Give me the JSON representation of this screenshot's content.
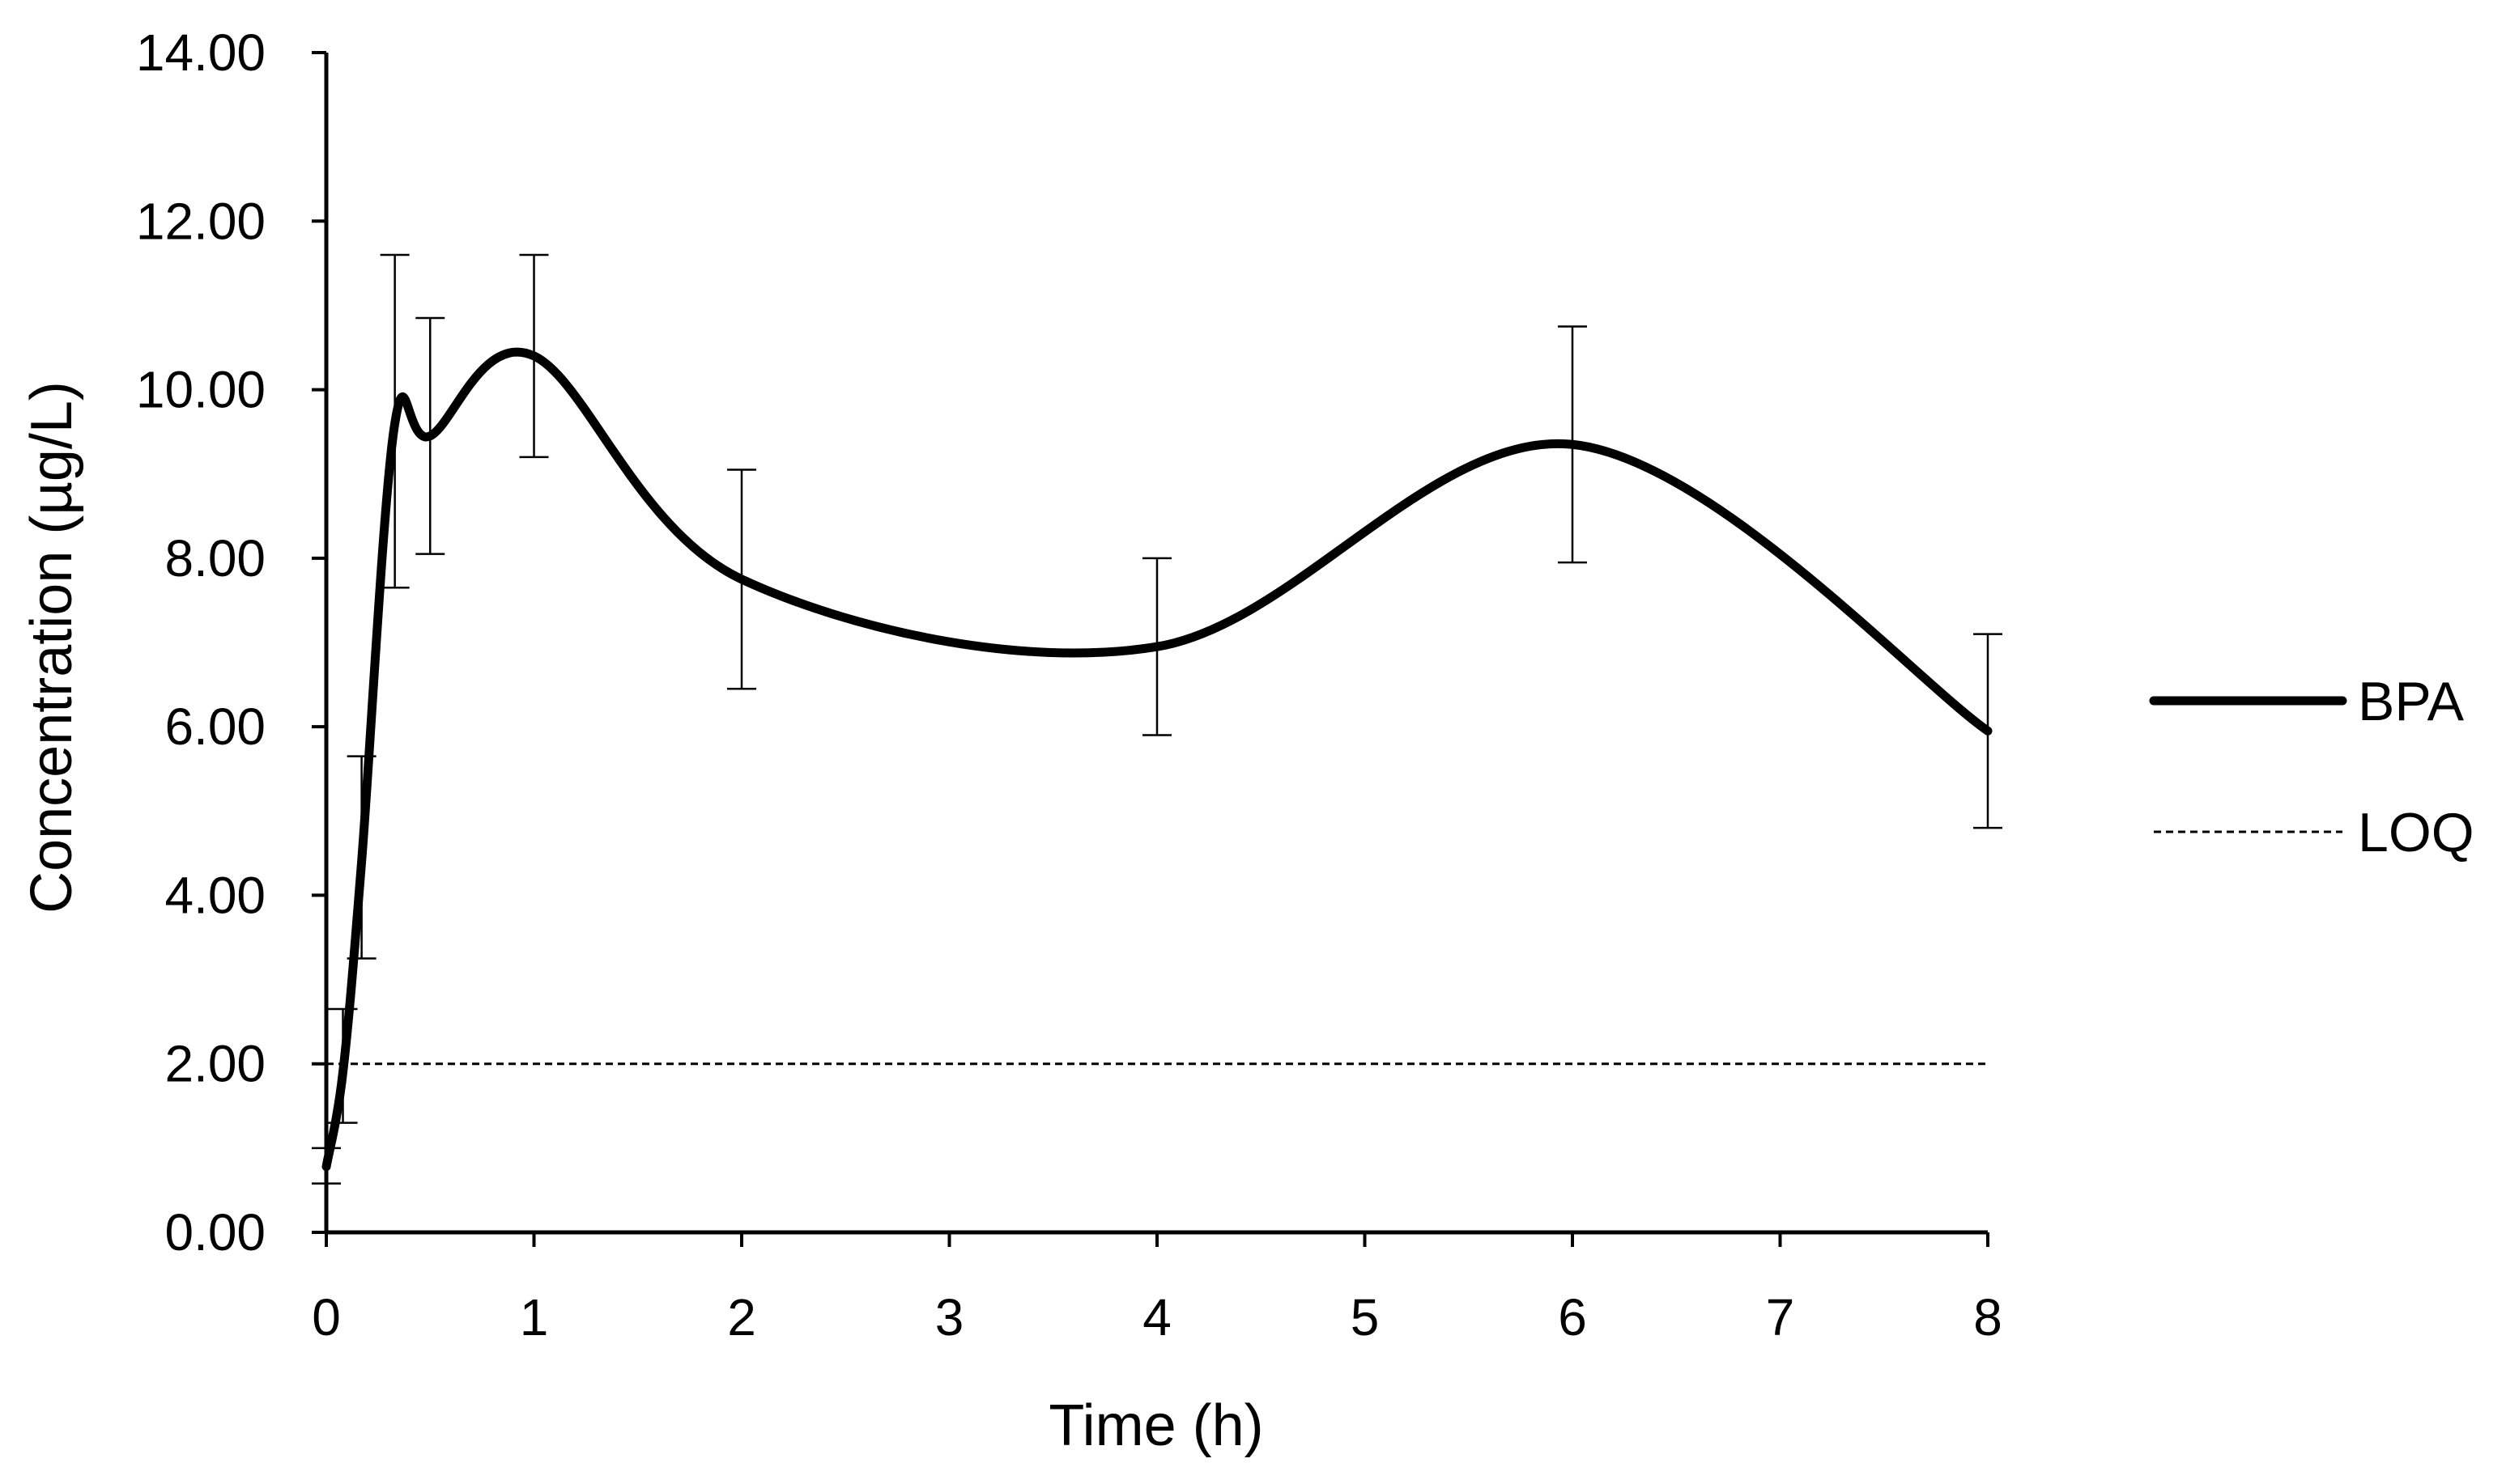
{
  "chart_data": {
    "type": "line",
    "title": "",
    "xlabel": "Time (h)",
    "ylabel": "Concentration (µg/L)",
    "xlim": [
      0,
      8
    ],
    "ylim": [
      0,
      14
    ],
    "x_ticks": [
      0,
      1,
      2,
      3,
      4,
      5,
      6,
      7,
      8
    ],
    "x_tick_labels": [
      "0",
      "1",
      "2",
      "3",
      "4",
      "5",
      "6",
      "7",
      "8"
    ],
    "y_ticks": [
      0,
      2,
      4,
      6,
      8,
      10,
      12,
      14
    ],
    "y_tick_labels": [
      "0.00",
      "2.00",
      "4.00",
      "6.00",
      "8.00",
      "10.00",
      "12.00",
      "14.00"
    ],
    "grid": false,
    "legend_position": "right",
    "series": [
      {
        "name": "BPA",
        "style": "solid-thick-smooth",
        "color": "#000000",
        "points": [
          {
            "x": 0,
            "y": 0.78,
            "err_low": 0.58,
            "err_high": 1.0
          },
          {
            "x": 0.08,
            "y": 1.9,
            "err_low": 1.3,
            "err_high": 2.65
          },
          {
            "x": 0.17,
            "y": 4.4,
            "err_low": 3.25,
            "err_high": 5.65
          },
          {
            "x": 0.33,
            "y": 9.6,
            "err_low": 7.65,
            "err_high": 11.6
          },
          {
            "x": 0.5,
            "y": 9.45,
            "err_low": 8.05,
            "err_high": 10.85
          },
          {
            "x": 1,
            "y": 10.4,
            "err_low": 9.2,
            "err_high": 11.6
          },
          {
            "x": 2,
            "y": 7.75,
            "err_low": 6.45,
            "err_high": 9.05
          },
          {
            "x": 4,
            "y": 6.95,
            "err_low": 5.9,
            "err_high": 8.0
          },
          {
            "x": 6,
            "y": 9.35,
            "err_low": 7.95,
            "err_high": 10.75
          },
          {
            "x": 8,
            "y": 5.95,
            "err_low": 4.8,
            "err_high": 7.1
          }
        ]
      },
      {
        "name": "LOQ",
        "style": "dashed-thin",
        "color": "#000000",
        "points": [
          {
            "x": 0,
            "y": 2.0
          },
          {
            "x": 8,
            "y": 2.0
          }
        ]
      }
    ]
  }
}
